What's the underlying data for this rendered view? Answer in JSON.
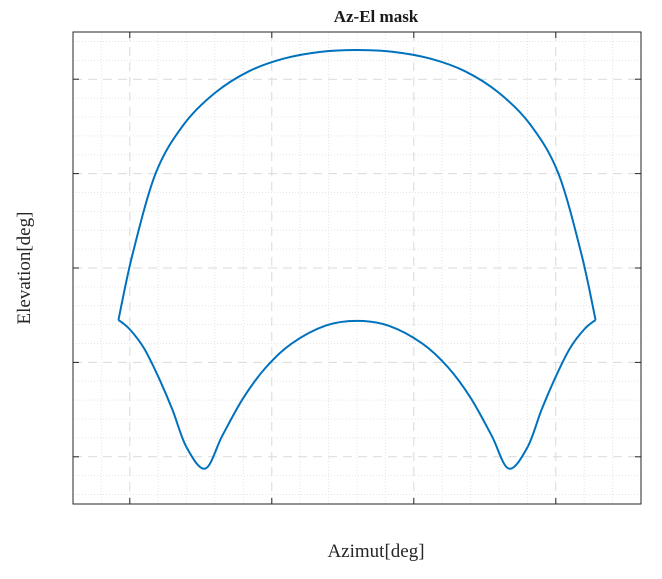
{
  "chart_data": {
    "type": "line",
    "title": "Az-El mask",
    "xlabel": "Azimut[deg]",
    "ylabel": "Elevation[deg]",
    "xlim": [
      0,
      100
    ],
    "ylim": [
      0,
      100
    ],
    "grid": true,
    "minor_grid": true,
    "x_ticks": [
      10,
      35,
      60,
      85
    ],
    "y_ticks": [
      10,
      30,
      50,
      70,
      90
    ],
    "tick_labels_visible": false,
    "series": [
      {
        "color": "#0072bd",
        "x": [
          8.0,
          10.5,
          14.6,
          19.5,
          25.0,
          31.0,
          37.2,
          43.6,
          50.0,
          56.4,
          62.8,
          69.0,
          75.0,
          80.5,
          85.4,
          89.5,
          92.0
        ],
        "y": [
          39.0,
          53.0,
          70.2,
          80.4,
          87.1,
          91.7,
          94.4,
          95.8,
          96.2,
          95.8,
          94.4,
          91.7,
          87.1,
          80.4,
          70.2,
          53.0,
          39.0
        ]
      },
      {
        "color": "#0072bd",
        "x": [
          8.0,
          10.0,
          12.5,
          15.0,
          17.5,
          20.0,
          23.3,
          26.3,
          30.0,
          34.0,
          38.5,
          44.5,
          50.0,
          55.5,
          61.5,
          66.0,
          70.0,
          73.7,
          76.7,
          80.0,
          82.5,
          85.0,
          87.5,
          90.0,
          92.0
        ],
        "y": [
          39.0,
          37.0,
          33.0,
          27.0,
          20.0,
          12.0,
          7.5,
          14.5,
          22.5,
          29.0,
          34.0,
          37.8,
          38.8,
          37.8,
          34.0,
          29.0,
          22.5,
          14.5,
          7.5,
          12.0,
          20.0,
          27.0,
          33.0,
          37.0,
          39.0
        ]
      }
    ]
  }
}
